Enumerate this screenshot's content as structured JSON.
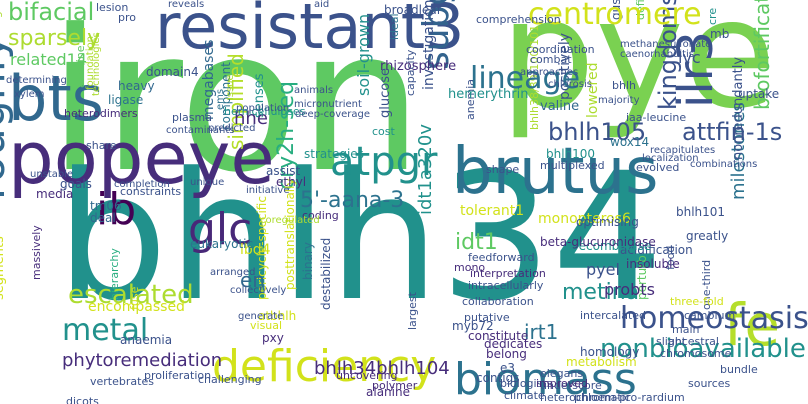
{
  "palette": {
    "dark_purple": "#440154",
    "purple": "#472d7b",
    "indigo": "#3b528b",
    "blue": "#2c728e",
    "teal": "#21918c",
    "green_teal": "#28ae80",
    "green": "#5ec962",
    "lime": "#addc30",
    "yellow": "#fde725"
  },
  "words": [
    "iron",
    "bhlh34",
    "pye",
    "popeye",
    "brutus",
    "resistant3",
    "bts",
    "ib",
    "deficiency",
    "biomass",
    "fe",
    "glc",
    "atpgr",
    "roughly",
    "ilr3",
    "centromere",
    "subgroup",
    "lineage",
    "kingdoms",
    "homeostasis",
    "nonbioavailable",
    "metal",
    "escalated",
    "cry2h-seq",
    "5'-aana-3",
    "bifacial",
    "sparsely",
    "related14",
    "attfin-1s",
    "bhlh105",
    "biofortification",
    "milestones",
    "irt1",
    "metina",
    "idt1a320v",
    "idt1",
    "en",
    "hhe",
    "lbd4",
    "pyel",
    "probts",
    "phytoremediation",
    "bhlh34bhlh104",
    "monopteros6",
    "tolerant1",
    "ivc",
    "uptake",
    "simplified",
    "wox14",
    "hemerythrin",
    "rhizosphere",
    "soil-grown",
    "glucose",
    "ligase",
    "heavy",
    "domain4",
    "senses",
    "plasma",
    "hemicelluloses",
    "megabases",
    "component",
    "animals",
    "investigation",
    "deep-coverage",
    "micronutrient",
    "cost",
    "lowered",
    "combat",
    "positively",
    "valine",
    "iaa-leucine",
    "bhlh100",
    "nonredundantly",
    "shape",
    "multiplexed",
    "evolved",
    "greatly",
    "bhlh101",
    "optimising",
    "acidification",
    "recombinase",
    "insoluble",
    "beta-glucuronidase",
    "feedforward",
    "mono",
    "coding",
    "eukaryotic",
    "tm06",
    "deal",
    "media",
    "goals",
    "ethyl",
    "assist",
    "strategies",
    "atbhlh",
    "pxy",
    "anaemia",
    "encompassed",
    "dedicates",
    "constitute",
    "belong",
    "myb72",
    "metabolism",
    "homology",
    "e3",
    "contigs",
    "elegans",
    "alanine",
    "biologists",
    "underscore",
    "climate",
    "uncovering",
    "polymer",
    "heterochromatic",
    "phloem-pro-rardium",
    "sources",
    "bundle",
    "perturb",
    "putative",
    "improved",
    "slight",
    "chromosome",
    "three-fold",
    "one-third",
    "cambium",
    "main",
    "ancestral",
    "intercalated",
    "collaboration",
    "intracellularly",
    "interpretation",
    "destabilized",
    "visual",
    "binary",
    "posttranslationally",
    "pericycle-specific",
    "challenging",
    "proliferation",
    "vertebrates",
    "hierarchy",
    "massively",
    "segments",
    "dicots",
    "breeding",
    "unstable",
    "constraints",
    "completion",
    "unique",
    "initiative",
    "ems",
    "issue",
    "foundation",
    "technologies",
    "coregulated",
    "arranged",
    "collectively",
    "generate",
    "population",
    "predicted",
    "alkaline",
    "contaminants",
    "fuse",
    "share",
    "heterodimers",
    "xylem",
    "determining",
    "cre",
    "define",
    "gus",
    "lesion",
    "pro",
    "reveals",
    "aid",
    "broadleaf",
    "ideal",
    "capacity",
    "comprehension",
    "mb",
    "bulk",
    "bhlh38/39/100/101",
    "coordination",
    "methanesulfonate",
    "largest",
    "caenorhabditis",
    "approaches",
    "chlorosis",
    "majority",
    "food",
    "anemia",
    "bhlh",
    "localization",
    "recapitulates",
    "combinations"
  ]
}
